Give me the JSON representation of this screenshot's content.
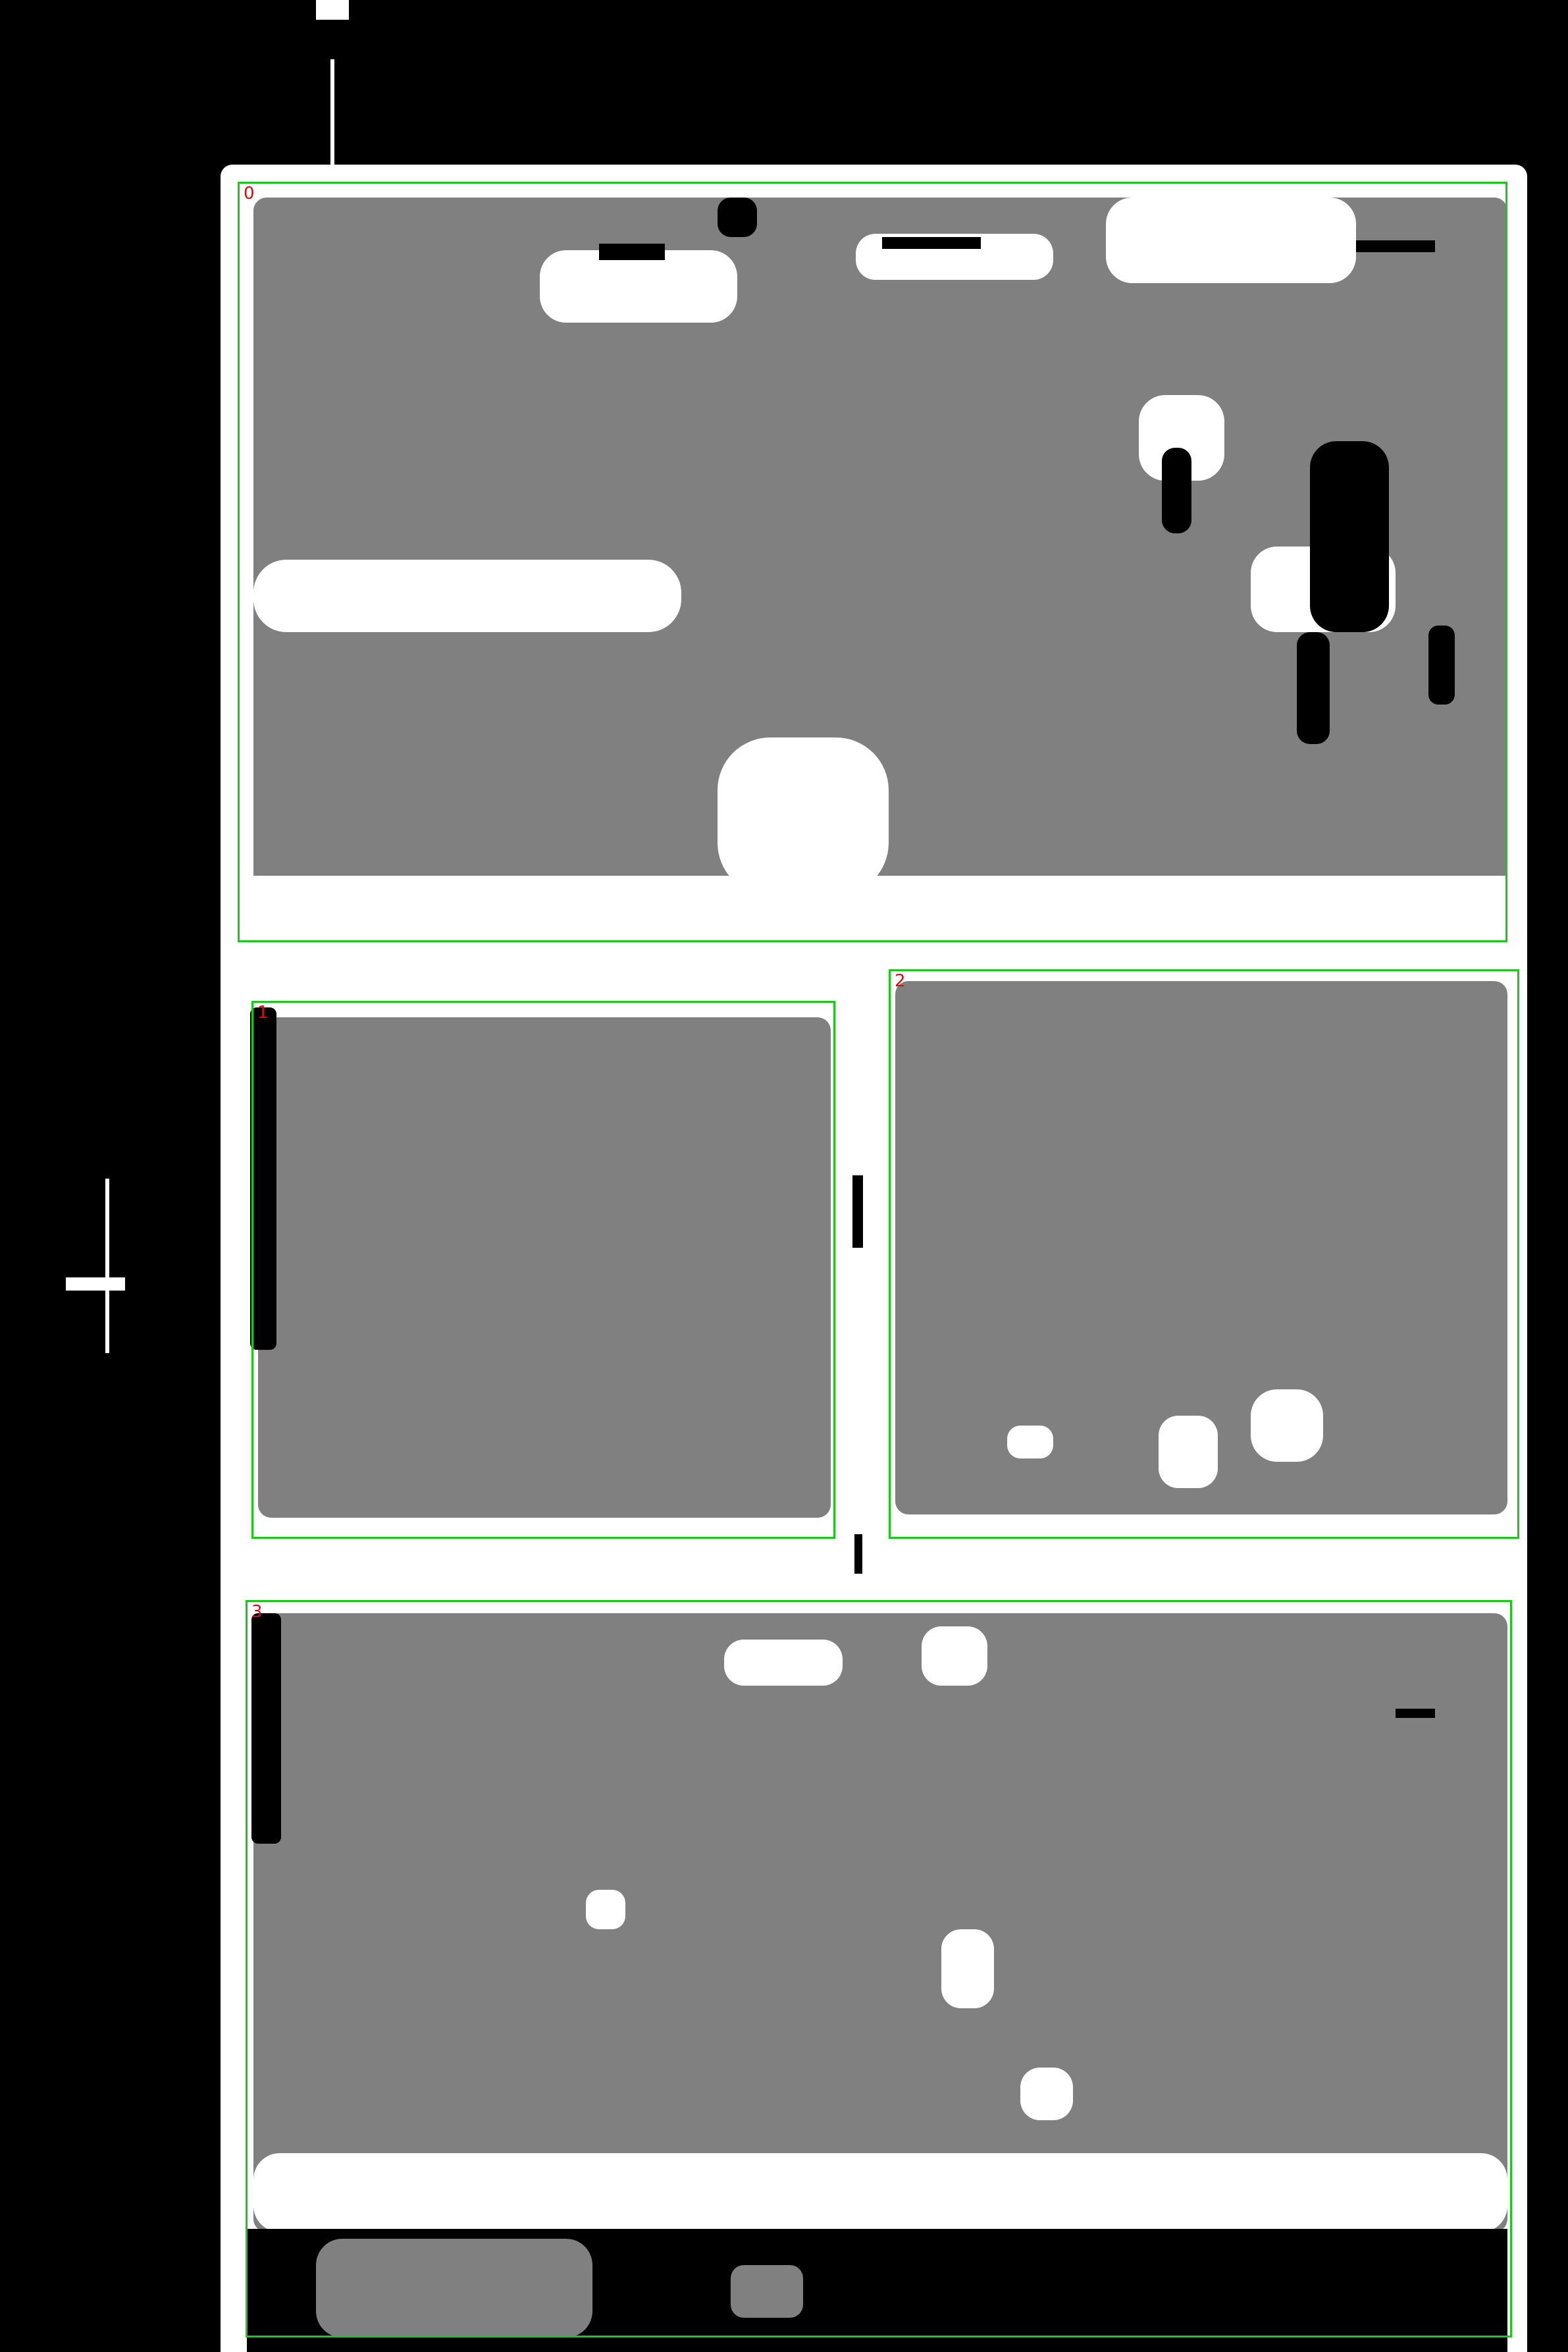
{
  "colors": {
    "background": "#000000",
    "sheet": "#ffffff",
    "mask": "#808080",
    "box_outline": "#19c819",
    "box_label": "#d01010"
  },
  "boxes": [
    {
      "label": "0"
    },
    {
      "label": "1"
    },
    {
      "label": "2"
    },
    {
      "label": "3"
    }
  ]
}
